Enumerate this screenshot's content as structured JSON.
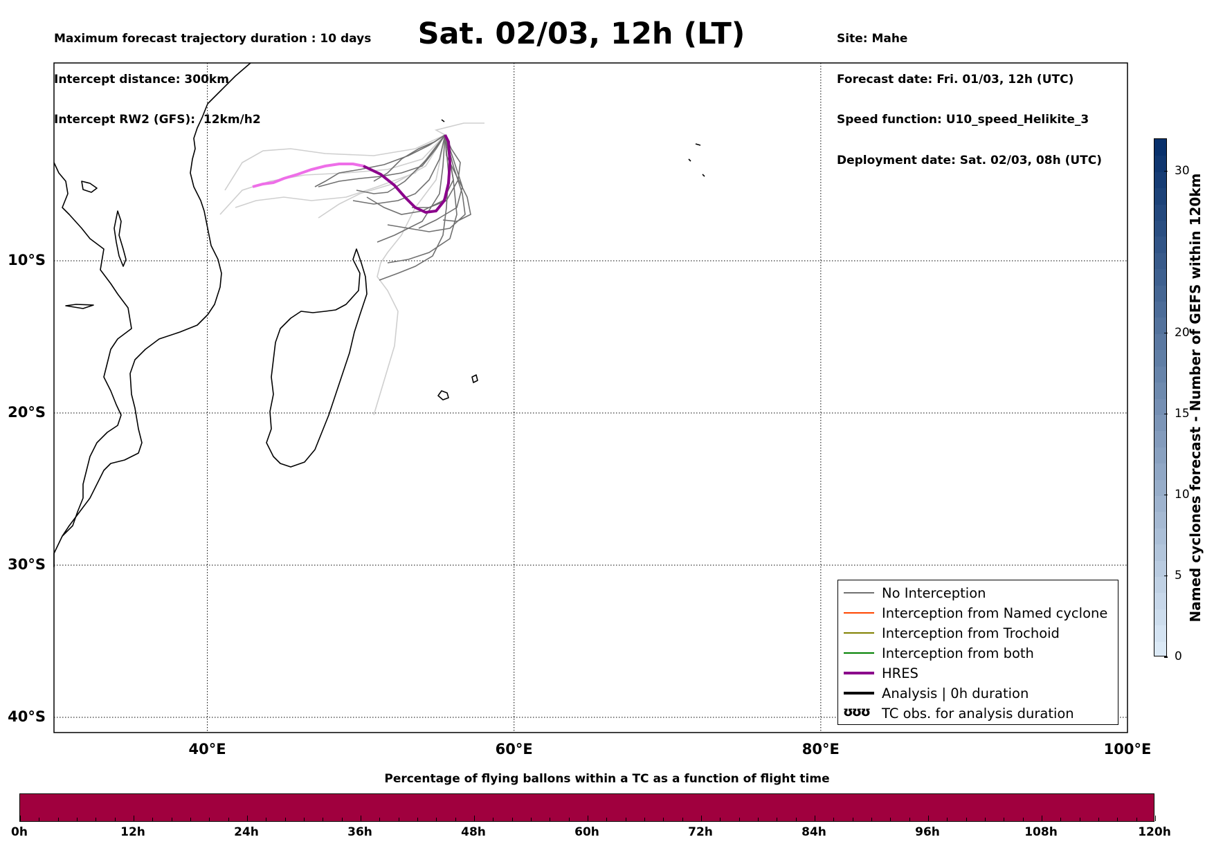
{
  "header": {
    "left_lines": [
      "Maximum forecast trajectory duration : 10 days",
      "Intercept distance: 300km",
      "Intercept RW2 (GFS):  12km/h2"
    ],
    "title": "Sat. 02/03, 12h (LT)",
    "right_lines": [
      "Site: Mahe",
      "Forecast date: Fri. 01/03, 12h (UTC)",
      "Speed function: U10_speed_Helikite_3",
      "Deployment date: Sat. 02/03, 08h (UTC)"
    ]
  },
  "map": {
    "lon_range": [
      30,
      100
    ],
    "lat_range": [
      -41,
      3
    ],
    "lat_labels": [
      {
        "lat": -10,
        "text": "10°S"
      },
      {
        "lat": -20,
        "text": "20°S"
      },
      {
        "lat": -30,
        "text": "30°S"
      },
      {
        "lat": -40,
        "text": "40°S"
      }
    ],
    "lon_labels": [
      {
        "lon": 40,
        "text": "40°E"
      },
      {
        "lon": 60,
        "text": "60°E"
      },
      {
        "lon": 80,
        "text": "80°E"
      },
      {
        "lon": 100,
        "text": "100°E"
      }
    ],
    "colors": {
      "no_interception": "#707070",
      "light_trajectory": "#cfcfcf",
      "named_cyclone": "#ff4500",
      "trochoid": "#808000",
      "both": "#008000",
      "hres": "#8b008b",
      "hres_faded": "#ee6ee8",
      "analysis": "#000000"
    }
  },
  "legend": {
    "items": [
      {
        "label": "No Interception",
        "color": "#707070",
        "width": 1
      },
      {
        "label": "Interception from Named cyclone",
        "color": "#ff4500",
        "width": 1
      },
      {
        "label": "Interception from Trochoid",
        "color": "#808000",
        "width": 1
      },
      {
        "label": "Interception from both",
        "color": "#008000",
        "width": 1
      },
      {
        "label": "HRES",
        "color": "#8b008b",
        "width": 4
      },
      {
        "label": "Analysis | 0h duration",
        "color": "#000000",
        "width": 4
      },
      {
        "label": "TC obs. for analysis duration",
        "symbol": "ʊʊʊ"
      }
    ]
  },
  "cyclone_colorbar": {
    "label": "Named cyclones forecast - Number of GEFS within 120km",
    "range": [
      0,
      32
    ],
    "ticks": [
      0,
      5,
      10,
      15,
      20,
      30
    ],
    "color_low": "#dbe9f6",
    "color_high": "#08306b"
  },
  "flight_time_bar": {
    "title": "Percentage of flying ballons within a TC as a function of flight time",
    "fill_color": "#a0003e",
    "ticks": [
      "0h",
      "12h",
      "24h",
      "36h",
      "48h",
      "60h",
      "72h",
      "84h",
      "96h",
      "108h",
      "120h"
    ],
    "percentages": [
      0,
      0,
      0,
      0,
      0,
      0,
      0,
      0,
      0,
      0,
      0
    ]
  }
}
